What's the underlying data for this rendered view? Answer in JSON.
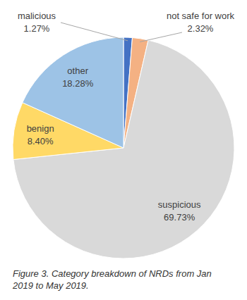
{
  "chart_data": {
    "type": "pie",
    "title": "Figure 3. Category breakdown of NRDs from Jan 2019 to May 2019.",
    "categories": [
      "malicious",
      "not safe for work",
      "suspicious",
      "benign",
      "other"
    ],
    "values": [
      1.27,
      2.32,
      69.73,
      8.4,
      18.28
    ],
    "value_labels": [
      "1.27%",
      "2.32%",
      "69.73%",
      "8.40%",
      "18.28%"
    ],
    "colors": [
      "#4472c4",
      "#f4b183",
      "#d9d9d9",
      "#ffd966",
      "#9dc3e6"
    ],
    "data_labels": true
  }
}
